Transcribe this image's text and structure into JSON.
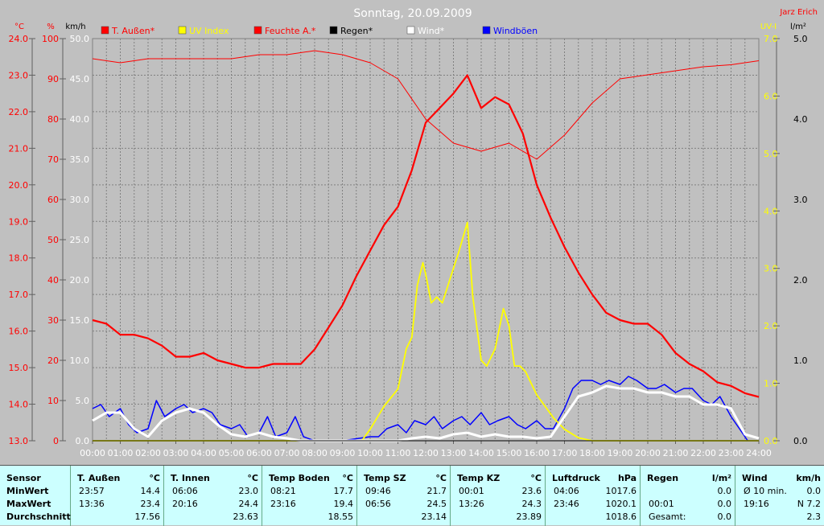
{
  "chart_data": {
    "type": "line",
    "title": "Sonntag, 20.09.2009",
    "author": "Jarz Erich",
    "x_ticks": [
      "00:00",
      "01:00",
      "02:00",
      "03:00",
      "04:00",
      "05:00",
      "06:00",
      "07:00",
      "08:00",
      "09:00",
      "10:00",
      "11:00",
      "12:00",
      "13:00",
      "14:00",
      "15:00",
      "16:00",
      "17:00",
      "18:00",
      "19:00",
      "20:00",
      "21:00",
      "22:00",
      "23:00",
      "24:00"
    ],
    "axes": {
      "temp": {
        "unit": "°C",
        "range": [
          13.0,
          24.0
        ],
        "ticks": [
          "13.0",
          "14.0",
          "15.0",
          "16.0",
          "17.0",
          "18.0",
          "19.0",
          "20.0",
          "21.0",
          "22.0",
          "23.0",
          "24.0"
        ]
      },
      "humidity": {
        "unit": "%",
        "range": [
          0,
          100
        ],
        "ticks": [
          "0",
          "10",
          "20",
          "30",
          "40",
          "50",
          "60",
          "70",
          "80",
          "90",
          "100"
        ]
      },
      "wind": {
        "unit": "km/h",
        "range": [
          0,
          50
        ],
        "ticks": [
          "0.0",
          "5.0",
          "10.0",
          "15.0",
          "20.0",
          "25.0",
          "30.0",
          "35.0",
          "40.0",
          "45.0",
          "50.0"
        ]
      },
      "uv": {
        "unit": "UV-I",
        "range": [
          0,
          7
        ],
        "ticks": [
          "0.0",
          "1.0",
          "2.0",
          "3.0",
          "4.0",
          "5.0",
          "6.0",
          "7.0"
        ]
      },
      "rain": {
        "unit": "l/m²",
        "range": [
          0,
          5
        ],
        "ticks": [
          "0.0",
          "1.0",
          "2.0",
          "3.0",
          "4.0",
          "5.0"
        ]
      }
    },
    "legend": [
      {
        "name": "T. Außen*",
        "color": "#ff0000"
      },
      {
        "name": "UV Index",
        "color": "#ffff00"
      },
      {
        "name": "Feuchte A.*",
        "color": "#ff0000"
      },
      {
        "name": "Regen*",
        "color": "#000000"
      },
      {
        "name": "Wind*",
        "color": "#ffffff"
      },
      {
        "name": "Windböen",
        "color": "#0000ff"
      }
    ],
    "series": [
      {
        "name": "T. Außen*",
        "axis": "temp",
        "color": "#ff0000",
        "x": [
          0,
          0.5,
          1,
          1.5,
          2,
          2.5,
          3,
          3.5,
          4,
          4.5,
          5,
          5.5,
          6,
          6.5,
          7,
          7.5,
          8,
          8.5,
          9,
          9.5,
          10,
          10.5,
          11,
          11.5,
          12,
          12.5,
          13,
          13.5,
          14,
          14.5,
          15,
          15.5,
          16,
          16.5,
          17,
          17.5,
          18,
          18.5,
          19,
          19.5,
          20,
          20.5,
          21,
          21.5,
          22,
          22.5,
          23,
          23.5,
          24
        ],
        "values": [
          16.3,
          16.2,
          15.9,
          15.9,
          15.8,
          15.6,
          15.3,
          15.3,
          15.4,
          15.2,
          15.1,
          15.0,
          15.0,
          15.1,
          15.1,
          15.1,
          15.5,
          16.1,
          16.7,
          17.5,
          18.2,
          18.9,
          19.4,
          20.4,
          21.7,
          22.1,
          22.5,
          23.0,
          22.1,
          22.4,
          22.2,
          21.4,
          20.0,
          19.1,
          18.3,
          17.6,
          17.0,
          16.5,
          16.3,
          16.2,
          16.2,
          15.9,
          15.4,
          15.1,
          14.9,
          14.6,
          14.5,
          14.3,
          14.2
        ]
      },
      {
        "name": "Feuchte A.*",
        "axis": "humidity",
        "color": "#ff0000",
        "x": [
          0,
          1,
          2,
          3,
          4,
          5,
          6,
          7,
          8,
          9,
          10,
          11,
          12,
          13,
          14,
          15,
          16,
          17,
          18,
          19,
          20,
          21,
          22,
          23,
          24
        ],
        "values": [
          95,
          94,
          95,
          95,
          95,
          95,
          96,
          96,
          97,
          96,
          94,
          90,
          80,
          74,
          72,
          74,
          70,
          76,
          84,
          90,
          91,
          92,
          93,
          93.5,
          94.5
        ]
      },
      {
        "name": "UV Index",
        "axis": "uv",
        "color": "#ffff00",
        "x": [
          0,
          9.7,
          10,
          10.5,
          11,
          11.3,
          11.5,
          11.7,
          11.9,
          12,
          12.2,
          12.4,
          12.6,
          12.8,
          13,
          13.2,
          13.5,
          13.7,
          14,
          14.2,
          14.5,
          14.8,
          15,
          15.2,
          15.4,
          15.6,
          16,
          16.3,
          16.6,
          17,
          17.5,
          18,
          24
        ],
        "values": [
          0,
          0,
          0.2,
          0.6,
          0.9,
          1.6,
          1.8,
          2.7,
          3.1,
          2.9,
          2.4,
          2.5,
          2.4,
          2.7,
          3.0,
          3.3,
          3.8,
          2.5,
          1.4,
          1.3,
          1.6,
          2.3,
          2.0,
          1.3,
          1.3,
          1.2,
          0.8,
          0.6,
          0.4,
          0.2,
          0.05,
          0,
          0
        ]
      },
      {
        "name": "Wind*",
        "axis": "wind",
        "color": "#ffffff",
        "x": [
          0,
          0.5,
          1,
          1.5,
          2,
          2.5,
          3,
          3.5,
          4,
          4.5,
          5,
          5.5,
          6,
          6.5,
          7,
          7.5,
          8,
          8.5,
          9,
          9.5,
          10,
          10.5,
          11,
          11.5,
          12,
          12.5,
          13,
          13.5,
          14,
          14.5,
          15,
          15.5,
          16,
          16.5,
          17,
          17.5,
          18,
          18.5,
          19,
          19.5,
          20,
          20.5,
          21,
          21.5,
          22,
          22.5,
          23,
          23.5,
          24
        ],
        "values": [
          2.5,
          3.5,
          3.5,
          1.5,
          0.5,
          2.5,
          3.5,
          4,
          3.5,
          2,
          0.8,
          0.5,
          1,
          0.5,
          0.3,
          0,
          0,
          0,
          0,
          0,
          0,
          0,
          0,
          0.3,
          0.5,
          0.3,
          0.8,
          1,
          0.5,
          0.8,
          0.5,
          0.5,
          0.3,
          0.5,
          3,
          5.5,
          6,
          6.8,
          6.5,
          6.5,
          6,
          6,
          5.5,
          5.5,
          4.5,
          4.5,
          4,
          0.8,
          0.3
        ]
      },
      {
        "name": "Windböen",
        "axis": "wind",
        "color": "#0000ff",
        "x": [
          0,
          0.3,
          0.6,
          1,
          1.3,
          1.6,
          2,
          2.3,
          2.6,
          3,
          3.3,
          3.6,
          4,
          4.3,
          4.6,
          5,
          5.3,
          5.6,
          6,
          6.3,
          6.6,
          7,
          7.3,
          7.6,
          8,
          9,
          10,
          10.3,
          10.6,
          11,
          11.3,
          11.6,
          12,
          12.3,
          12.6,
          13,
          13.3,
          13.6,
          14,
          14.3,
          14.6,
          15,
          15.3,
          15.6,
          16,
          16.3,
          16.6,
          17,
          17.3,
          17.6,
          18,
          18.3,
          18.6,
          19,
          19.3,
          19.6,
          20,
          20.3,
          20.6,
          21,
          21.3,
          21.6,
          22,
          22.3,
          22.6,
          23,
          23.3,
          23.6
        ],
        "values": [
          4,
          4.5,
          3,
          4,
          2,
          1,
          1.5,
          5,
          3,
          4,
          4.5,
          3.5,
          4,
          3.5,
          2,
          1.5,
          2,
          0.5,
          1,
          3,
          0.5,
          1,
          3,
          0.5,
          0,
          0,
          0.5,
          0.5,
          1.5,
          2,
          1,
          2.5,
          2,
          3,
          1.5,
          2.5,
          3,
          2,
          3.5,
          2,
          2.5,
          3,
          2,
          1.5,
          2.5,
          1.5,
          1.5,
          4,
          6.5,
          7.5,
          7.5,
          7,
          7.5,
          7,
          8,
          7.5,
          6.5,
          6.5,
          7,
          6,
          6.5,
          6.5,
          5,
          4.5,
          5.5,
          3,
          1.5,
          0
        ]
      }
    ]
  },
  "table": {
    "columns": [
      {
        "header": "Sensor",
        "unit": "",
        "rows": [
          [
            "MinWert",
            "",
            ""
          ],
          [
            "MaxWert",
            "",
            ""
          ],
          [
            "Durchschnitt",
            "",
            ""
          ]
        ]
      },
      {
        "header": "T. Außen",
        "unit": "°C",
        "rows": [
          [
            "23:57",
            "",
            "14.4"
          ],
          [
            "13:36",
            "",
            "23.4"
          ],
          [
            "",
            "",
            "17.56"
          ]
        ]
      },
      {
        "header": "T. Innen",
        "unit": "°C",
        "rows": [
          [
            "06:06",
            "",
            "23.0"
          ],
          [
            "20:16",
            "",
            "24.4"
          ],
          [
            "",
            "",
            "23.63"
          ]
        ]
      },
      {
        "header": "Temp Boden",
        "unit": "°C",
        "rows": [
          [
            "08:21",
            "",
            "17.7"
          ],
          [
            "23:16",
            "",
            "19.4"
          ],
          [
            "",
            "",
            "18.55"
          ]
        ]
      },
      {
        "header": "Temp SZ",
        "unit": "°C",
        "rows": [
          [
            "09:46",
            "",
            "21.7"
          ],
          [
            "06:56",
            "",
            "24.5"
          ],
          [
            "",
            "",
            "23.14"
          ]
        ]
      },
      {
        "header": "Temp KZ",
        "unit": "°C",
        "rows": [
          [
            "00:01",
            "",
            "23.6"
          ],
          [
            "13:26",
            "",
            "24.3"
          ],
          [
            "",
            "",
            "23.89"
          ]
        ]
      },
      {
        "header": "Luftdruck",
        "unit": "hPa",
        "rows": [
          [
            "04:06",
            "",
            "1017.6"
          ],
          [
            "23:46",
            "",
            "1020.1"
          ],
          [
            "",
            "",
            "1018.6"
          ]
        ]
      },
      {
        "header": "Regen",
        "unit": "l/m²",
        "rows": [
          [
            "",
            "",
            "0.0"
          ],
          [
            "00:01",
            "",
            "0.0"
          ],
          [
            "Gesamt:",
            "",
            "0.0"
          ]
        ]
      },
      {
        "header": "Wind",
        "unit": "km/h",
        "rows": [
          [
            "Ø 10 min.",
            "",
            "0.0"
          ],
          [
            "19:16",
            "",
            "N 7.2"
          ],
          [
            "",
            "",
            "2.3"
          ]
        ]
      }
    ]
  }
}
